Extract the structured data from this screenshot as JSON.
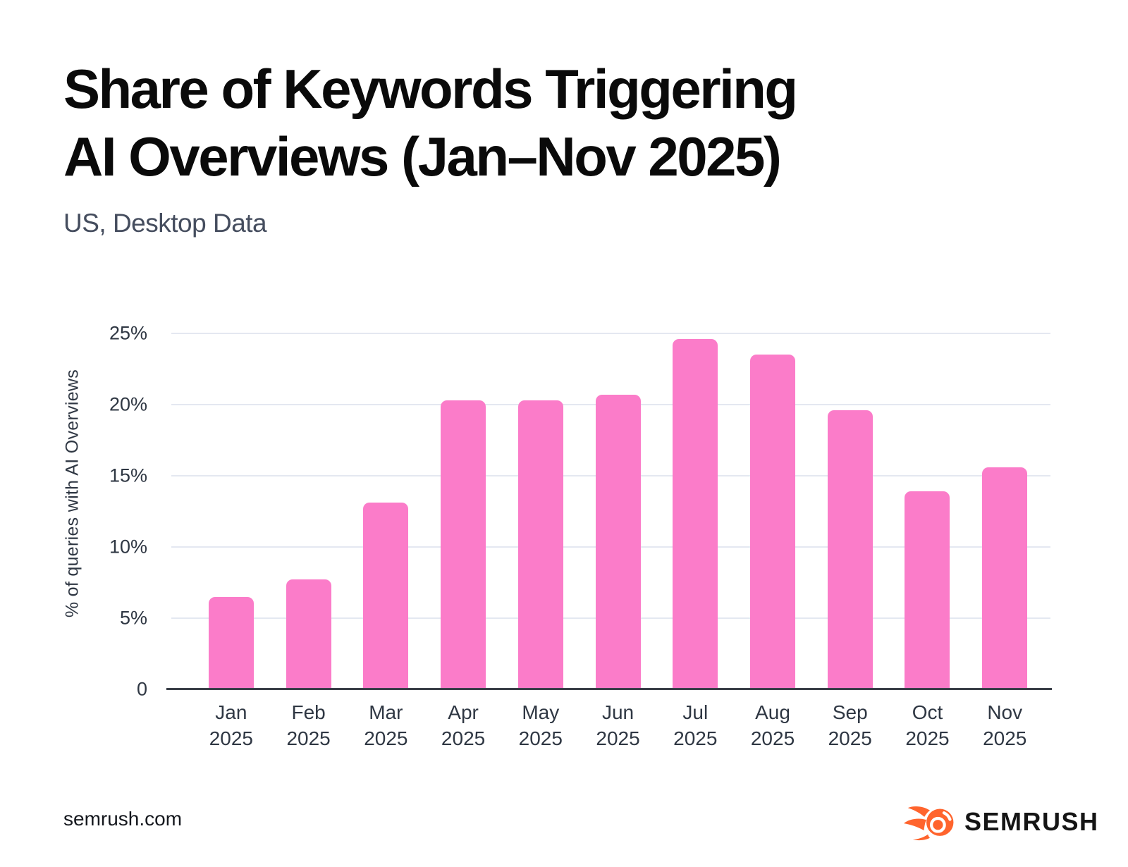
{
  "header": {
    "title_line1": "Share of Keywords Triggering",
    "title_line2": "AI Overviews (Jan–Nov 2025)",
    "subtitle": "US, Desktop Data"
  },
  "footer": {
    "site": "semrush.com",
    "brand": "SEMRUSH",
    "logo_icon": "semrush-fireball-icon"
  },
  "colors": {
    "bar": "#FB7CC9",
    "gridline": "#E4E8F1",
    "axis_line": "#3A3F48",
    "tick_text": "#2F3743",
    "title_text": "#0A0A0A",
    "subtitle_text": "#454D5E",
    "brand_orange": "#FF642D",
    "brand_text": "#151515"
  },
  "chart_data": {
    "type": "bar",
    "title": "Share of Keywords Triggering AI Overviews (Jan–Nov 2025)",
    "subtitle": "US, Desktop Data",
    "xlabel": "",
    "ylabel": "% of queries with AI Overviews",
    "ylim": [
      0,
      25
    ],
    "grid": true,
    "legend": "none",
    "bar_color": "#FB7CC9",
    "categories": [
      {
        "month": "Jan",
        "year": "2025"
      },
      {
        "month": "Feb",
        "year": "2025"
      },
      {
        "month": "Mar",
        "year": "2025"
      },
      {
        "month": "Apr",
        "year": "2025"
      },
      {
        "month": "May",
        "year": "2025"
      },
      {
        "month": "Jun",
        "year": "2025"
      },
      {
        "month": "Jul",
        "year": "2025"
      },
      {
        "month": "Aug",
        "year": "2025"
      },
      {
        "month": "Sep",
        "year": "2025"
      },
      {
        "month": "Oct",
        "year": "2025"
      },
      {
        "month": "Nov",
        "year": "2025"
      }
    ],
    "values": [
      6.5,
      7.7,
      13.1,
      20.3,
      20.3,
      20.7,
      24.6,
      23.5,
      19.6,
      13.9,
      15.6
    ],
    "yticks": [
      {
        "value": 0,
        "label": "0"
      },
      {
        "value": 5,
        "label": "5%"
      },
      {
        "value": 10,
        "label": "10%"
      },
      {
        "value": 15,
        "label": "15%"
      },
      {
        "value": 20,
        "label": "20%"
      },
      {
        "value": 25,
        "label": "25%"
      }
    ]
  }
}
